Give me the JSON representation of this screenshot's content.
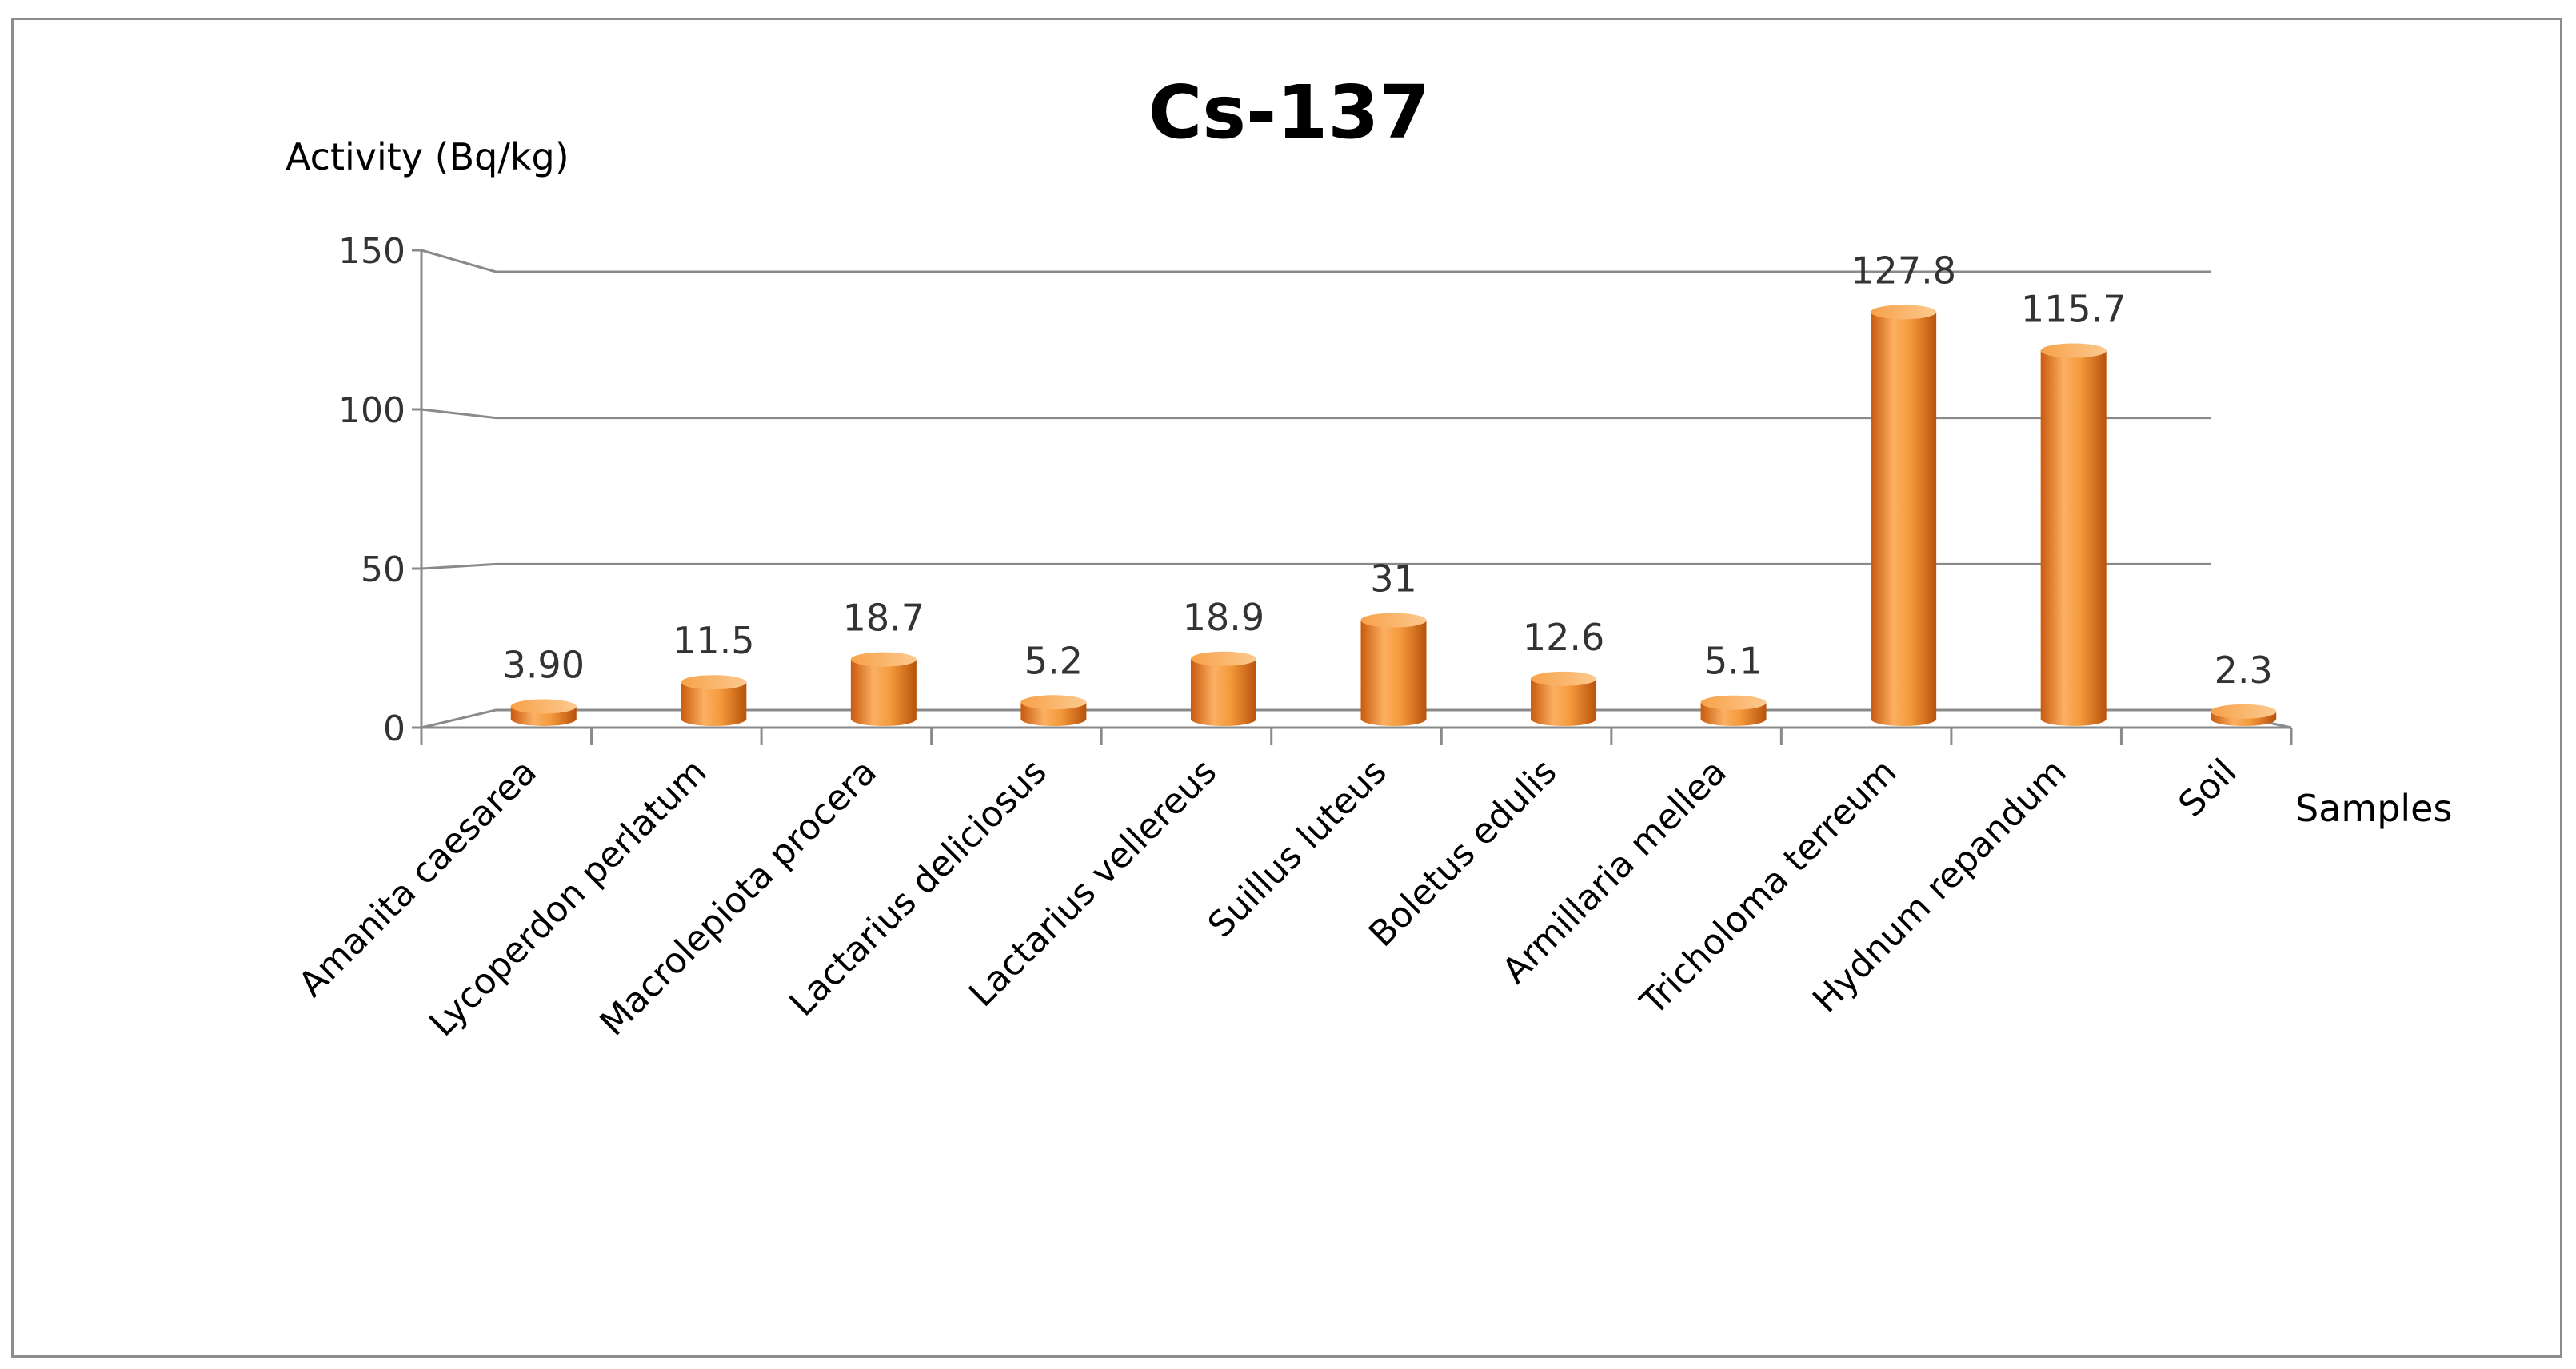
{
  "chart_data": {
    "type": "bar",
    "title": "Cs-137",
    "ylabel": "Activity (Bq/kg)",
    "xlabel": "Samples",
    "ylim": [
      0,
      150
    ],
    "yticks": [
      "0",
      "50",
      "100",
      "150"
    ],
    "categories": [
      "Amanita caesarea",
      "Lycoperdon perlatum",
      "Macrolepiota procera",
      "Lactarius deliciosus",
      "Lactarius vellereus",
      "Suillus luteus",
      "Boletus edulis",
      "Armillaria mellea",
      "Tricholoma terreum",
      "Hydnum repandum",
      "Soil"
    ],
    "values": [
      3.9,
      11.5,
      18.7,
      5.2,
      18.9,
      31,
      12.6,
      5.1,
      127.8,
      115.7,
      2.3
    ],
    "value_labels": [
      "3.90",
      "11.5",
      "18.7",
      "5.2",
      "18.9",
      "31",
      "12.6",
      "5.1",
      "127.8",
      "115.7",
      "2.3"
    ],
    "bar_color": "#f59a3c",
    "grid": true,
    "legend": "none"
  }
}
